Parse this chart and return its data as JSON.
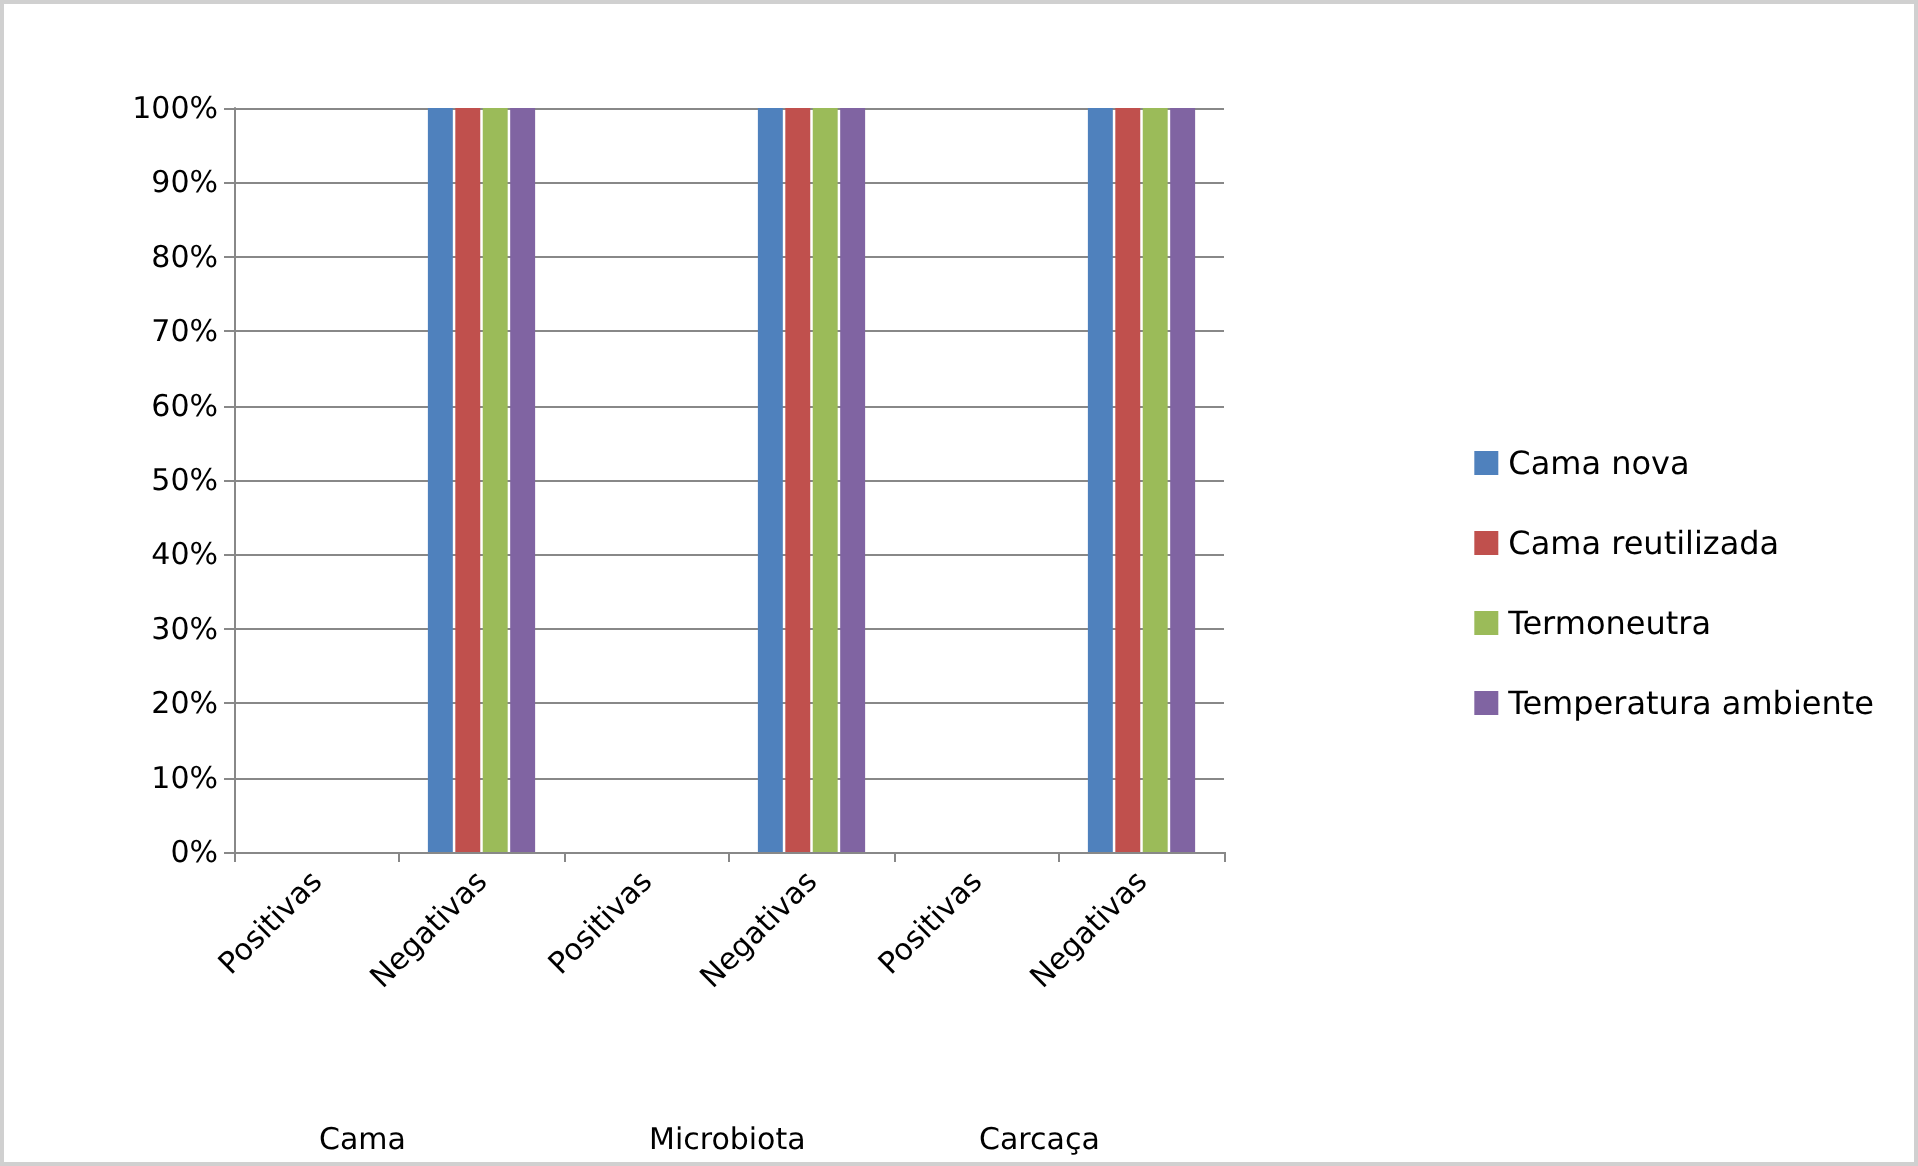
{
  "chart_data": {
    "type": "bar",
    "categories": [
      "Positivas",
      "Negativas",
      "Positivas",
      "Negativas",
      "Positivas",
      "Negativas"
    ],
    "series": [
      {
        "name": "Cama nova",
        "color": "#4f81bd",
        "values": [
          0,
          100,
          0,
          100,
          0,
          100
        ]
      },
      {
        "name": "Cama reutilizada",
        "color": "#c0504d",
        "values": [
          0,
          100,
          0,
          100,
          0,
          100
        ]
      },
      {
        "name": "Termoneutra",
        "color": "#9bbb59",
        "values": [
          0,
          100,
          0,
          100,
          0,
          100
        ]
      },
      {
        "name": "Temperatura ambiente",
        "color": "#8064a2",
        "values": [
          0,
          100,
          0,
          100,
          0,
          100
        ]
      }
    ],
    "ylim": [
      0,
      100
    ],
    "yticks": [
      {
        "value": 0,
        "label": "0%"
      },
      {
        "value": 10,
        "label": "10%"
      },
      {
        "value": 20,
        "label": "20%"
      },
      {
        "value": 30,
        "label": "30%"
      },
      {
        "value": 40,
        "label": "40%"
      },
      {
        "value": 50,
        "label": "50%"
      },
      {
        "value": 60,
        "label": "60%"
      },
      {
        "value": 70,
        "label": "70%"
      },
      {
        "value": 80,
        "label": "80%"
      },
      {
        "value": 90,
        "label": "90%"
      },
      {
        "value": 100,
        "label": "100%"
      }
    ],
    "annotations": [
      "Cama",
      "Microbiota",
      "Carcaça"
    ],
    "grid": "y",
    "legend": "right"
  }
}
